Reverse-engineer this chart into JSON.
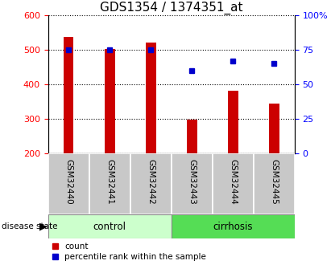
{
  "title": "GDS1354 / 1374351_at",
  "samples": [
    "GSM32440",
    "GSM32441",
    "GSM32442",
    "GSM32443",
    "GSM32444",
    "GSM32445"
  ],
  "counts": [
    537,
    503,
    522,
    298,
    381,
    344
  ],
  "percentile_ranks_pct": [
    75,
    75,
    75,
    60,
    67,
    65
  ],
  "groups": [
    "control",
    "control",
    "control",
    "cirrhosis",
    "cirrhosis",
    "cirrhosis"
  ],
  "ylim_left": [
    200,
    600
  ],
  "ylim_right": [
    0,
    100
  ],
  "yticks_left": [
    200,
    300,
    400,
    500,
    600
  ],
  "yticks_right": [
    0,
    25,
    50,
    75,
    100
  ],
  "bar_color": "#cc0000",
  "dot_color": "#0000cc",
  "control_color": "#ccffcc",
  "cirrhosis_color": "#55dd55",
  "label_bg_color": "#c8c8c8",
  "grid_color": "#000000",
  "title_fontsize": 11,
  "tick_fontsize": 8,
  "bar_width": 0.25
}
